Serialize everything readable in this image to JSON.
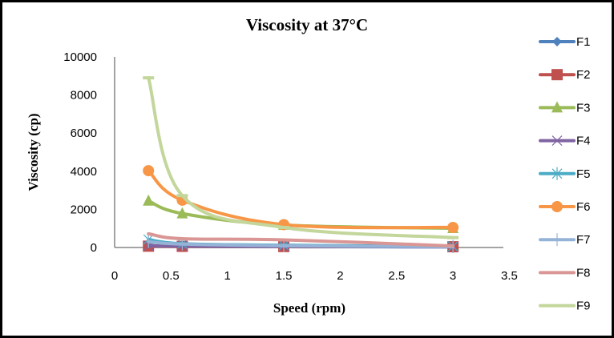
{
  "chart_data": {
    "type": "line",
    "title": "Viscosity at 37°C",
    "xlabel": "Speed (rpm)",
    "ylabel": "Viscosity (cp)",
    "xlim": [
      0,
      3.5
    ],
    "ylim": [
      0,
      10000
    ],
    "x_ticks": [
      "0",
      "0.5",
      "1",
      "1.5",
      "2",
      "2.5",
      "3",
      "3.5"
    ],
    "y_ticks": [
      "0",
      "2000",
      "4000",
      "6000",
      "8000",
      "10000"
    ],
    "grid": false,
    "legend_position": "right",
    "x": [
      0.3,
      0.6,
      1.5,
      3
    ],
    "series": [
      {
        "name": "F1",
        "color": "#4F81BD",
        "marker": "diamond",
        "values": [
          60,
          50,
          40,
          30
        ]
      },
      {
        "name": "F2",
        "color": "#C0504D",
        "marker": "square",
        "values": [
          70,
          60,
          50,
          40
        ]
      },
      {
        "name": "F3",
        "color": "#9BBB59",
        "marker": "triangle",
        "values": [
          2450,
          1780,
          1180,
          1010
        ]
      },
      {
        "name": "F4",
        "color": "#8064A2",
        "marker": "x",
        "values": [
          90,
          80,
          60,
          30
        ]
      },
      {
        "name": "F5",
        "color": "#4BACC6",
        "marker": "star",
        "values": [
          420,
          200,
          120,
          60
        ]
      },
      {
        "name": "F6",
        "color": "#F79646",
        "marker": "circle",
        "values": [
          4030,
          2480,
          1200,
          1050
        ]
      },
      {
        "name": "F7",
        "color": "#95B3D7",
        "marker": "plus",
        "values": [
          300,
          180,
          90,
          40
        ]
      },
      {
        "name": "F8",
        "color": "#D99694",
        "marker": "none",
        "values": [
          720,
          460,
          400,
          80
        ]
      },
      {
        "name": "F9",
        "color": "#C3D69B",
        "marker": "dash",
        "values": [
          8900,
          2720,
          1050,
          520
        ]
      }
    ]
  }
}
